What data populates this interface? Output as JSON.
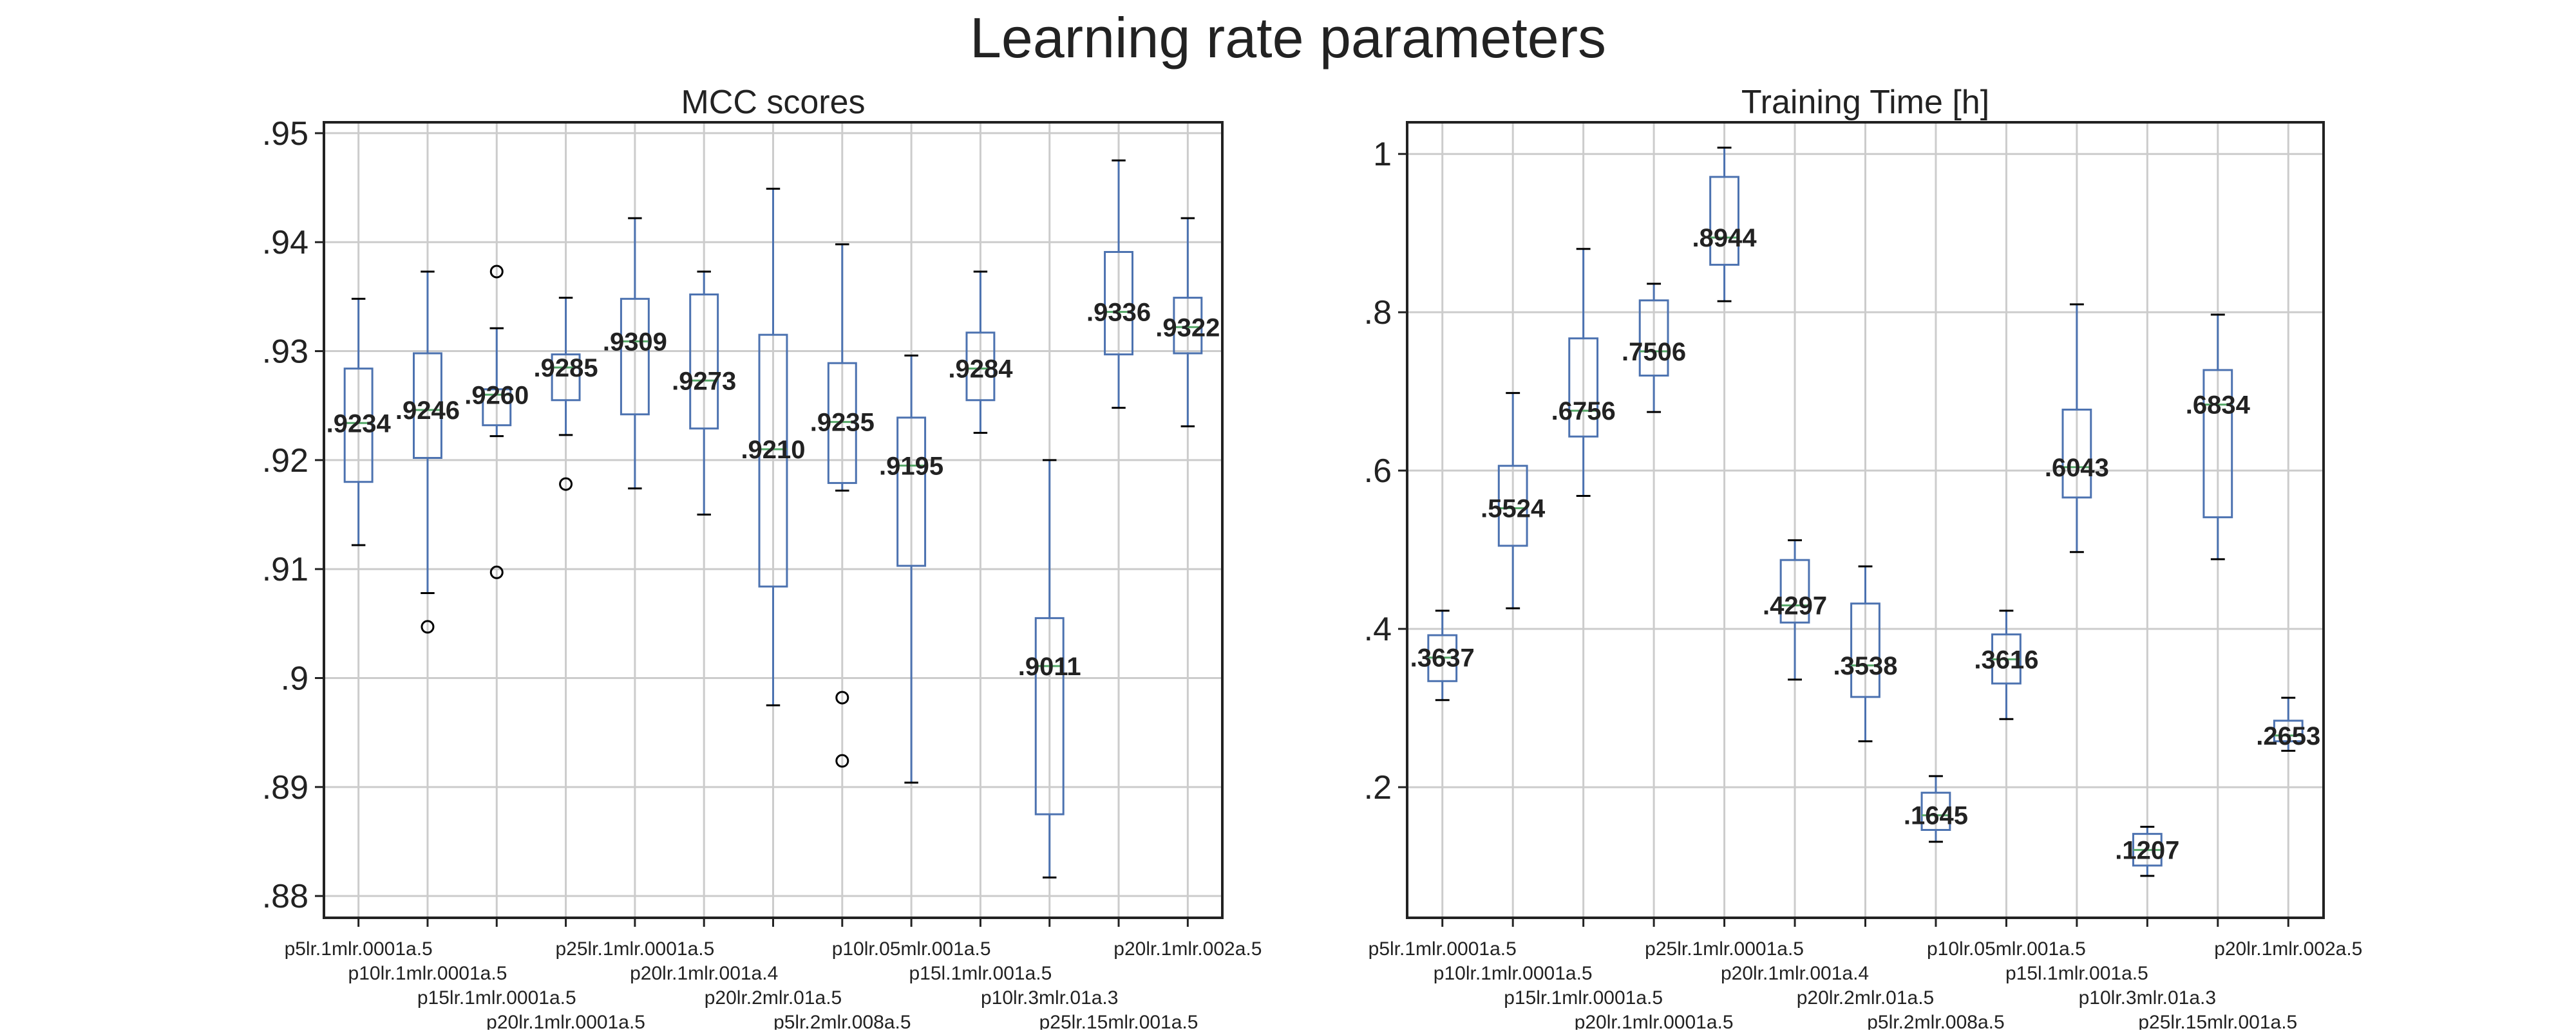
{
  "figure": {
    "title": "Learning rate parameters"
  },
  "chart_data": [
    {
      "type": "box",
      "title": "MCC scores",
      "ylim": [
        0.878,
        0.951
      ],
      "yticks": [
        0.88,
        0.89,
        0.9,
        0.91,
        0.92,
        0.93,
        0.94,
        0.95
      ],
      "ytick_labels": [
        ".88",
        ".89",
        ".9",
        ".91",
        ".92",
        ".93",
        ".94",
        ".95"
      ],
      "grid": true,
      "categories": [
        "p5lr.1mlr.0001a.5",
        "p10lr.1mlr.0001a.5",
        "p15lr.1mlr.0001a.5",
        "p20lr.1mlr.0001a.5",
        "p25lr.1mlr.0001a.5",
        "p20lr.1mlr.001a.4",
        "p20lr.2mlr.01a.5",
        "p5lr.2mlr.008a.5",
        "p10lr.05mlr.001a.5",
        "p15l.1mlr.001a.5",
        "p10lr.3mlr.01a.3",
        "p25lr.15mlr.001a.5",
        "p20lr.1mlr.002a.5"
      ],
      "boxes": [
        {
          "whislo": 0.9122,
          "q1": 0.918,
          "med": 0.9234,
          "q3": 0.9284,
          "whishi": 0.9348,
          "fliers": [],
          "label": ".9234"
        },
        {
          "whislo": 0.9078,
          "q1": 0.9202,
          "med": 0.9246,
          "q3": 0.9298,
          "whishi": 0.9373,
          "fliers": [
            0.9047
          ],
          "label": ".9246"
        },
        {
          "whislo": 0.9222,
          "q1": 0.9232,
          "med": 0.926,
          "q3": 0.9265,
          "whishi": 0.9321,
          "fliers": [
            0.9373,
            0.9097
          ],
          "label": ".9260"
        },
        {
          "whislo": 0.9223,
          "q1": 0.9255,
          "med": 0.9285,
          "q3": 0.9297,
          "whishi": 0.9349,
          "fliers": [
            0.9178
          ],
          "label": ".9285"
        },
        {
          "whislo": 0.9174,
          "q1": 0.9242,
          "med": 0.9309,
          "q3": 0.9348,
          "whishi": 0.9422,
          "fliers": [],
          "label": ".9309"
        },
        {
          "whislo": 0.915,
          "q1": 0.9229,
          "med": 0.9273,
          "q3": 0.9352,
          "whishi": 0.9373,
          "fliers": [],
          "label": ".9273"
        },
        {
          "whislo": 0.8975,
          "q1": 0.9084,
          "med": 0.921,
          "q3": 0.9315,
          "whishi": 0.9449,
          "fliers": [],
          "label": ".9210"
        },
        {
          "whislo": 0.9172,
          "q1": 0.9179,
          "med": 0.9235,
          "q3": 0.9289,
          "whishi": 0.9398,
          "fliers": [
            0.8982,
            0.8924
          ],
          "label": ".9235"
        },
        {
          "whislo": 0.8904,
          "q1": 0.9103,
          "med": 0.9195,
          "q3": 0.9239,
          "whishi": 0.9296,
          "fliers": [],
          "label": ".9195"
        },
        {
          "whislo": 0.9225,
          "q1": 0.9255,
          "med": 0.9284,
          "q3": 0.9317,
          "whishi": 0.9373,
          "fliers": [],
          "label": ".9284"
        },
        {
          "whislo": 0.8817,
          "q1": 0.8875,
          "med": 0.9011,
          "q3": 0.9055,
          "whishi": 0.92,
          "fliers": [],
          "label": ".9011"
        },
        {
          "whislo": 0.9248,
          "q1": 0.9297,
          "med": 0.9336,
          "q3": 0.9391,
          "whishi": 0.9475,
          "fliers": [],
          "label": ".9336"
        },
        {
          "whislo": 0.9231,
          "q1": 0.9298,
          "med": 0.9322,
          "q3": 0.9349,
          "whishi": 0.9422,
          "fliers": [],
          "label": ".9322"
        }
      ]
    },
    {
      "type": "box",
      "title": "Training Time [h]",
      "ylim": [
        0.035,
        1.04
      ],
      "yticks": [
        0.2,
        0.4,
        0.6,
        0.8,
        1.0
      ],
      "ytick_labels": [
        ".2",
        ".4",
        ".6",
        ".8",
        "1"
      ],
      "grid": true,
      "categories": [
        "p5lr.1mlr.0001a.5",
        "p10lr.1mlr.0001a.5",
        "p15lr.1mlr.0001a.5",
        "p20lr.1mlr.0001a.5",
        "p25lr.1mlr.0001a.5",
        "p20lr.1mlr.001a.4",
        "p20lr.2mlr.01a.5",
        "p5lr.2mlr.008a.5",
        "p10lr.05mlr.001a.5",
        "p15l.1mlr.001a.5",
        "p10lr.3mlr.01a.3",
        "p25lr.15mlr.001a.5",
        "p20lr.1mlr.002a.5"
      ],
      "boxes": [
        {
          "whislo": 0.31,
          "q1": 0.334,
          "med": 0.3637,
          "q3": 0.392,
          "whishi": 0.423,
          "fliers": [],
          "label": ".3637"
        },
        {
          "whislo": 0.426,
          "q1": 0.505,
          "med": 0.5524,
          "q3": 0.606,
          "whishi": 0.698,
          "fliers": [],
          "label": ".5524"
        },
        {
          "whislo": 0.568,
          "q1": 0.643,
          "med": 0.6756,
          "q3": 0.767,
          "whishi": 0.88,
          "fliers": [],
          "label": ".6756"
        },
        {
          "whislo": 0.674,
          "q1": 0.72,
          "med": 0.7506,
          "q3": 0.815,
          "whishi": 0.836,
          "fliers": [],
          "label": ".7506"
        },
        {
          "whislo": 0.814,
          "q1": 0.86,
          "med": 0.8944,
          "q3": 0.971,
          "whishi": 1.008,
          "fliers": [],
          "label": ".8944"
        },
        {
          "whislo": 0.336,
          "q1": 0.408,
          "med": 0.4297,
          "q3": 0.487,
          "whishi": 0.512,
          "fliers": [],
          "label": ".4297"
        },
        {
          "whislo": 0.258,
          "q1": 0.314,
          "med": 0.3538,
          "q3": 0.432,
          "whishi": 0.479,
          "fliers": [],
          "label": ".3538"
        },
        {
          "whislo": 0.131,
          "q1": 0.146,
          "med": 0.1645,
          "q3": 0.193,
          "whishi": 0.214,
          "fliers": [],
          "label": ".1645"
        },
        {
          "whislo": 0.286,
          "q1": 0.331,
          "med": 0.3616,
          "q3": 0.393,
          "whishi": 0.423,
          "fliers": [],
          "label": ".3616"
        },
        {
          "whislo": 0.497,
          "q1": 0.566,
          "med": 0.6043,
          "q3": 0.677,
          "whishi": 0.81,
          "fliers": [],
          "label": ".6043"
        },
        {
          "whislo": 0.088,
          "q1": 0.101,
          "med": 0.1207,
          "q3": 0.141,
          "whishi": 0.15,
          "fliers": [],
          "label": ".1207"
        },
        {
          "whislo": 0.488,
          "q1": 0.541,
          "med": 0.6834,
          "q3": 0.727,
          "whishi": 0.797,
          "fliers": [],
          "label": ".6834"
        },
        {
          "whislo": 0.246,
          "q1": 0.258,
          "med": 0.2653,
          "q3": 0.284,
          "whishi": 0.313,
          "fliers": [],
          "label": ".2653"
        }
      ]
    }
  ],
  "colors": {
    "box": "#4c72b0",
    "median": "#55a868",
    "whisker_cap": "#000000",
    "grid": "#cccccc",
    "axes": "#222222",
    "label": "#222222"
  }
}
